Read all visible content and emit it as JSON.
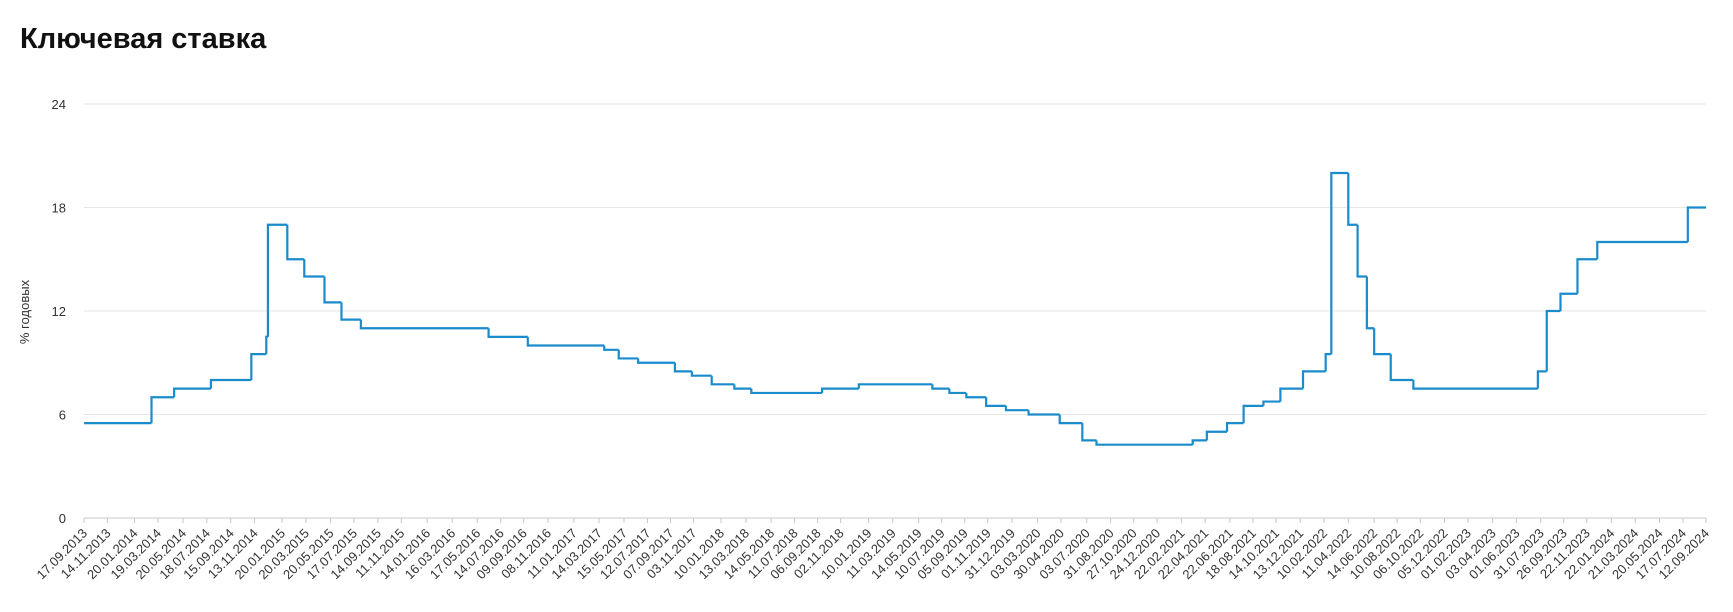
{
  "chart_data": {
    "type": "step-line",
    "title": "Ключевая ставка",
    "ylabel": "% годовых",
    "ylim": [
      0,
      24
    ],
    "yticks": [
      0,
      6,
      12,
      18,
      24
    ],
    "grid": true,
    "xlim": [
      "17.09.2013",
      "12.09.2024"
    ],
    "xticks": [
      "17.09.2013",
      "14.11.2013",
      "20.01.2014",
      "19.03.2014",
      "20.05.2014",
      "18.07.2014",
      "15.09.2014",
      "13.11.2014",
      "20.01.2015",
      "20.03.2015",
      "20.05.2015",
      "17.07.2015",
      "14.09.2015",
      "11.11.2015",
      "14.01.2016",
      "16.03.2016",
      "17.05.2016",
      "14.07.2016",
      "09.09.2016",
      "08.11.2016",
      "11.01.2017",
      "14.03.2017",
      "15.05.2017",
      "12.07.2017",
      "07.09.2017",
      "03.11.2017",
      "10.01.2018",
      "13.03.2018",
      "14.05.2018",
      "11.07.2018",
      "06.09.2018",
      "02.11.2018",
      "10.01.2019",
      "11.03.2019",
      "14.05.2019",
      "10.07.2019",
      "05.09.2019",
      "01.11.2019",
      "31.12.2019",
      "03.03.2020",
      "30.04.2020",
      "03.07.2020",
      "31.08.2020",
      "27.10.2020",
      "24.12.2020",
      "22.02.2021",
      "22.04.2021",
      "22.06.2021",
      "18.08.2021",
      "14.10.2021",
      "13.12.2021",
      "10.02.2022",
      "11.04.2022",
      "14.06.2022",
      "10.08.2022",
      "06.10.2022",
      "05.12.2022",
      "01.02.2023",
      "03.04.2023",
      "01.06.2023",
      "31.07.2023",
      "26.09.2023",
      "22.11.2023",
      "22.01.2024",
      "21.03.2024",
      "20.05.2024",
      "17.07.2024",
      "12.09.2024"
    ],
    "series": [
      {
        "color": "#1a8bcb",
        "x": [
          "17.09.2013",
          "03.03.2014",
          "28.04.2014",
          "28.07.2014",
          "05.11.2014",
          "12.12.2014",
          "16.12.2014",
          "02.02.2015",
          "16.03.2015",
          "05.05.2015",
          "16.06.2015",
          "03.08.2015",
          "14.06.2016",
          "19.09.2016",
          "27.03.2017",
          "02.05.2017",
          "19.06.2017",
          "18.09.2017",
          "30.10.2017",
          "18.12.2017",
          "12.02.2018",
          "26.03.2018",
          "17.09.2018",
          "17.12.2018",
          "17.06.2019",
          "29.07.2019",
          "09.09.2019",
          "28.10.2019",
          "16.12.2019",
          "10.02.2020",
          "27.04.2020",
          "22.06.2020",
          "27.07.2020",
          "22.03.2021",
          "26.04.2021",
          "15.06.2021",
          "26.07.2021",
          "13.09.2021",
          "25.10.2021",
          "20.12.2021",
          "14.02.2022",
          "28.02.2022",
          "11.04.2022",
          "04.05.2022",
          "27.05.2022",
          "14.06.2022",
          "25.07.2022",
          "19.09.2022",
          "24.07.2023",
          "15.08.2023",
          "18.09.2023",
          "30.10.2023",
          "18.12.2023",
          "29.07.2024",
          "12.09.2024"
        ],
        "values": [
          5.5,
          7,
          7.5,
          8,
          9.5,
          10.5,
          17,
          15,
          14,
          12.5,
          11.5,
          11,
          10.5,
          10,
          9.75,
          9.25,
          9,
          8.5,
          8.25,
          7.75,
          7.5,
          7.25,
          7.5,
          7.75,
          7.5,
          7.25,
          7,
          6.5,
          6.25,
          6,
          5.5,
          4.5,
          4.25,
          4.5,
          5,
          5.5,
          6.5,
          6.75,
          7.5,
          8.5,
          9.5,
          20,
          17,
          14,
          11,
          9.5,
          8,
          7.5,
          8.5,
          12,
          13,
          15,
          16,
          18,
          18
        ]
      }
    ]
  }
}
